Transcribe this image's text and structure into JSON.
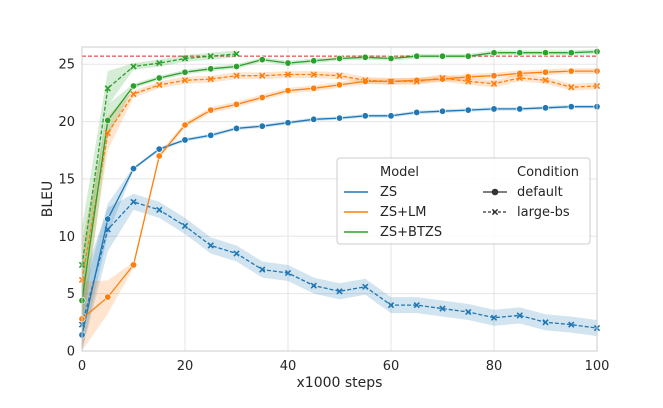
{
  "chart_data": {
    "type": "line",
    "title": "",
    "xlabel": "x1000 steps",
    "ylabel": "BLEU",
    "xlim": [
      0,
      100
    ],
    "ylim": [
      0,
      26.5
    ],
    "xticks": [
      0,
      20,
      40,
      60,
      80,
      100
    ],
    "yticks": [
      0,
      5,
      10,
      15,
      20,
      25
    ],
    "grid": true,
    "reference_line": {
      "y": 25.7,
      "color": "#d62728",
      "style": "dashed"
    },
    "legend": {
      "placement": "center-right",
      "model_title": "Model",
      "condition_title": "Condition",
      "models": [
        {
          "label": "ZS",
          "color": "#1f77b4"
        },
        {
          "label": "ZS+LM",
          "color": "#ff7f0e"
        },
        {
          "label": "ZS+BTZS",
          "color": "#2ca02c"
        }
      ],
      "conditions": [
        {
          "label": "default",
          "marker": "circle",
          "style": "solid"
        },
        {
          "label": "large-bs",
          "marker": "x",
          "style": "dashed"
        }
      ]
    },
    "series": [
      {
        "model": "ZS",
        "condition": "default",
        "color": "#1f77b4",
        "marker": "circle",
        "style": "solid",
        "x": [
          0,
          5,
          10,
          15,
          20,
          25,
          30,
          35,
          40,
          45,
          50,
          55,
          60,
          65,
          70,
          75,
          80,
          85,
          90,
          95,
          100
        ],
        "y": [
          1.4,
          11.5,
          15.9,
          17.6,
          18.4,
          18.8,
          19.4,
          19.6,
          19.9,
          20.2,
          20.3,
          20.5,
          20.5,
          20.8,
          20.9,
          21.0,
          21.1,
          21.1,
          21.2,
          21.3,
          21.3
        ],
        "ci": 0.15
      },
      {
        "model": "ZS",
        "condition": "large-bs",
        "color": "#1f77b4",
        "marker": "x",
        "style": "dashed",
        "x": [
          0,
          5,
          10,
          15,
          20,
          25,
          30,
          35,
          40,
          45,
          50,
          55,
          60,
          65,
          70,
          75,
          80,
          85,
          90,
          95,
          100
        ],
        "y": [
          2.3,
          10.6,
          13.0,
          12.3,
          10.9,
          9.2,
          8.5,
          7.1,
          6.8,
          5.7,
          5.2,
          5.6,
          4.0,
          4.0,
          3.7,
          3.4,
          2.9,
          3.1,
          2.5,
          2.3,
          2.0
        ],
        "ci": 0.7
      },
      {
        "model": "ZS+LM",
        "condition": "default",
        "color": "#ff7f0e",
        "marker": "circle",
        "style": "solid",
        "x": [
          0,
          5,
          10,
          15,
          20,
          25,
          30,
          35,
          40,
          45,
          50,
          55,
          60,
          65,
          70,
          75,
          80,
          85,
          90,
          95,
          100
        ],
        "y": [
          2.8,
          4.7,
          7.5,
          17.0,
          19.7,
          21.0,
          21.5,
          22.1,
          22.7,
          22.9,
          23.2,
          23.5,
          23.5,
          23.6,
          23.7,
          23.9,
          24.0,
          24.2,
          24.3,
          24.4,
          24.4
        ],
        "ci": 0.25
      },
      {
        "model": "ZS+LM",
        "condition": "large-bs",
        "color": "#ff7f0e",
        "marker": "x",
        "style": "dashed",
        "x": [
          0,
          5,
          10,
          15,
          20,
          25,
          30,
          35,
          40,
          45,
          50,
          55,
          60,
          65,
          70,
          75,
          80,
          85,
          90,
          95,
          100
        ],
        "y": [
          6.2,
          19.0,
          22.4,
          23.2,
          23.6,
          23.7,
          24.0,
          24.0,
          24.1,
          24.1,
          24.0,
          23.6,
          23.5,
          23.5,
          23.8,
          23.5,
          23.3,
          23.8,
          23.6,
          23.0,
          23.1
        ],
        "ci": 0.3
      },
      {
        "model": "ZS+BTZS",
        "condition": "default",
        "color": "#2ca02c",
        "marker": "circle",
        "style": "solid",
        "x": [
          0,
          5,
          10,
          15,
          20,
          25,
          30,
          35,
          40,
          45,
          50,
          55,
          60,
          65,
          70,
          75,
          80,
          85,
          90,
          95,
          100
        ],
        "y": [
          4.4,
          20.1,
          23.1,
          23.8,
          24.3,
          24.6,
          24.8,
          25.4,
          25.1,
          25.3,
          25.5,
          25.6,
          25.5,
          25.7,
          25.7,
          25.7,
          26.0,
          26.0,
          26.0,
          26.0,
          26.1
        ],
        "ci": 0.2
      },
      {
        "model": "ZS+BTZS",
        "condition": "large-bs",
        "color": "#2ca02c",
        "marker": "x",
        "style": "dashed",
        "x": [
          0,
          5,
          10,
          15,
          20,
          25,
          30
        ],
        "y": [
          7.5,
          22.9,
          24.8,
          25.1,
          25.5,
          25.7,
          25.9
        ],
        "ci": 0.3
      }
    ]
  }
}
